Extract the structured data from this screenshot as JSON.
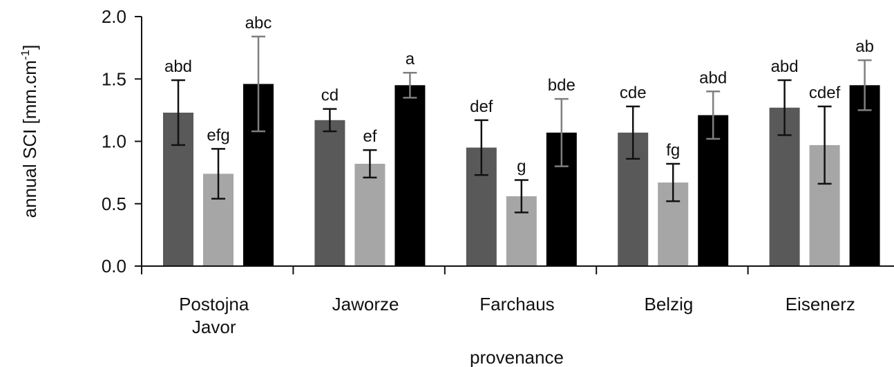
{
  "chart_data": {
    "type": "bar",
    "xlabel": "provenance",
    "ylabel": "annual SCI [mm.cm",
    "ylabel_superscript": "-1",
    "ylabel_suffix": "]",
    "ylim": [
      0,
      2.0
    ],
    "yticks": [
      "0.0",
      "0.5",
      "1.0",
      "1.5",
      "2.0"
    ],
    "categories": [
      [
        "Postojna",
        "Javor"
      ],
      [
        "Jaworze"
      ],
      [
        "Farchaus"
      ],
      [
        "Belzig"
      ],
      [
        "Eisenerz"
      ]
    ],
    "series": [
      {
        "color": "#595959",
        "error_color": "#111111",
        "values": [
          1.23,
          1.17,
          0.95,
          1.07,
          1.27
        ],
        "errors": [
          0.26,
          0.09,
          0.22,
          0.21,
          0.22
        ],
        "labels": [
          "abd",
          "cd",
          "def",
          "cde",
          "abd"
        ]
      },
      {
        "color": "#a6a6a6",
        "error_color": "#111111",
        "values": [
          0.74,
          0.82,
          0.56,
          0.67,
          0.97
        ],
        "errors": [
          0.2,
          0.11,
          0.13,
          0.15,
          0.31
        ],
        "labels": [
          "efg",
          "ef",
          "g",
          "fg",
          "cdef"
        ]
      },
      {
        "color": "#000000",
        "error_color": "#7f7f7f",
        "values": [
          1.46,
          1.45,
          1.07,
          1.21,
          1.45
        ],
        "errors": [
          0.38,
          0.1,
          0.27,
          0.19,
          0.2
        ],
        "labels": [
          "abc",
          "a",
          "bde",
          "abd",
          "ab"
        ]
      }
    ],
    "grid": false,
    "legend": "none"
  }
}
